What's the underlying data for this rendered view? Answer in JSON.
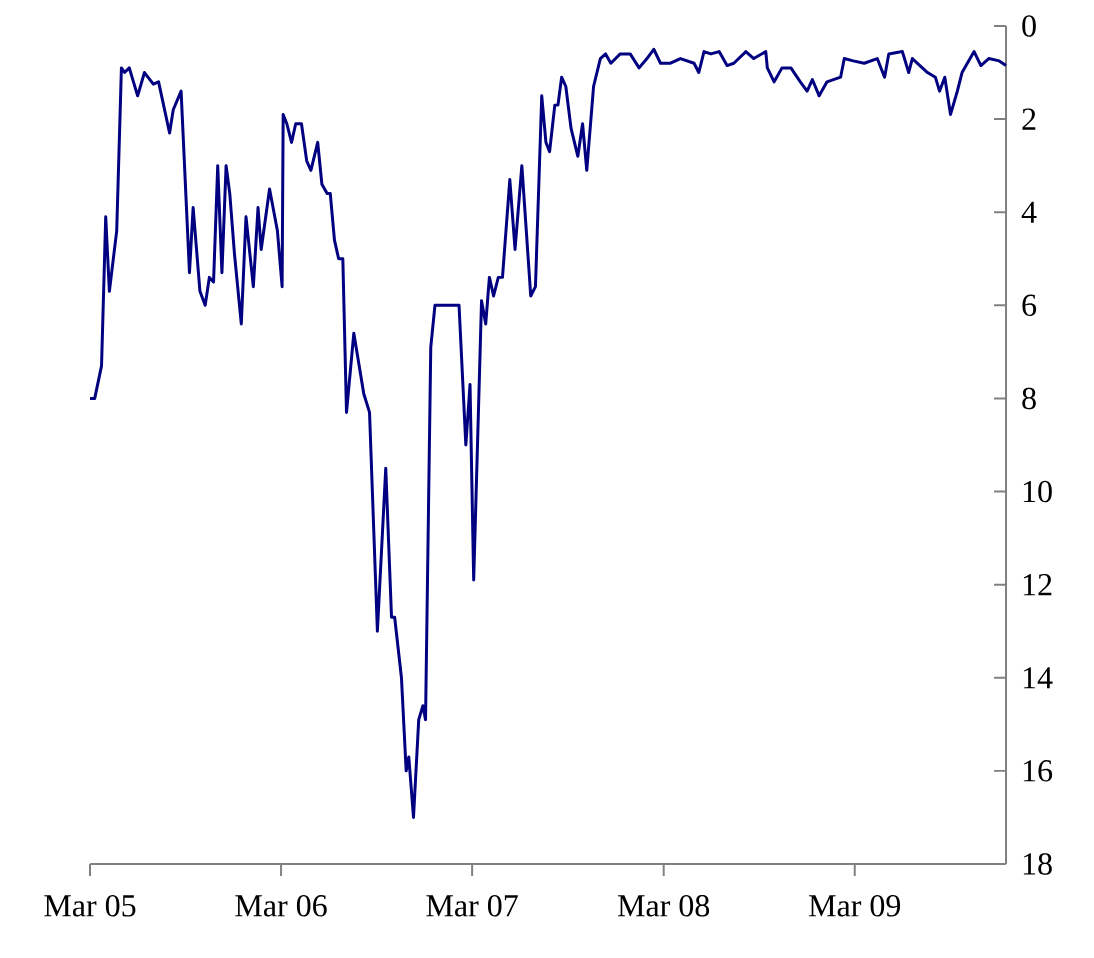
{
  "chart_data": {
    "type": "line",
    "color": "#000080",
    "x": [
      "2005-03-01",
      "2005-03-10",
      "2005-03-23",
      "2005-03-31",
      "2005-04-07",
      "2005-04-21",
      "2005-04-30",
      "2005-05-06",
      "2005-05-15",
      "2005-05-31",
      "2005-06-13",
      "2005-06-30",
      "2005-07-10",
      "2005-07-31",
      "2005-08-07",
      "2005-08-22",
      "2005-09-07",
      "2005-09-14",
      "2005-09-27",
      "2005-10-07",
      "2005-10-15",
      "2005-10-23",
      "2005-10-31",
      "2005-11-08",
      "2005-11-16",
      "2005-11-23",
      "2005-12-02",
      "2005-12-15",
      "2005-12-24",
      "2006-01-07",
      "2006-01-16",
      "2006-01-22",
      "2006-02-07",
      "2006-02-22",
      "2006-03-03",
      "2006-03-05",
      "2006-03-12",
      "2006-03-21",
      "2006-03-29",
      "2006-04-09",
      "2006-04-19",
      "2006-04-27",
      "2006-05-10",
      "2006-05-18",
      "2006-05-28",
      "2006-06-03",
      "2006-06-11",
      "2006-06-19",
      "2006-06-27",
      "2006-07-04",
      "2006-07-18",
      "2006-08-06",
      "2006-08-17",
      "2006-09-01",
      "2006-09-17",
      "2006-09-28",
      "2006-10-04",
      "2006-10-17",
      "2006-10-26",
      "2006-10-31",
      "2006-11-09",
      "2006-11-19",
      "2006-11-27",
      "2006-12-02",
      "2006-12-12",
      "2006-12-20",
      "2007-02-04",
      "2007-02-17",
      "2007-02-25",
      "2007-03-04",
      "2007-03-19",
      "2007-03-27",
      "2007-04-03",
      "2007-04-11",
      "2007-04-20",
      "2007-04-28",
      "2007-05-12",
      "2007-05-22",
      "2007-06-04",
      "2007-06-21",
      "2007-06-30",
      "2007-07-12",
      "2007-07-20",
      "2007-07-27",
      "2007-08-06",
      "2007-08-12",
      "2007-08-19",
      "2007-08-27",
      "2007-09-06",
      "2007-09-19",
      "2007-09-28",
      "2007-10-06",
      "2007-10-19",
      "2007-11-01",
      "2007-11-11",
      "2007-11-21",
      "2007-12-09",
      "2007-12-28",
      "2008-01-14",
      "2008-01-29",
      "2008-02-11",
      "2008-02-24",
      "2008-03-14",
      "2008-04-02",
      "2008-04-28",
      "2008-05-07",
      "2008-05-17",
      "2008-05-30",
      "2008-06-15",
      "2008-06-30",
      "2008-07-13",
      "2008-08-05",
      "2008-08-20",
      "2008-09-12",
      "2008-09-15",
      "2008-09-28",
      "2008-10-13",
      "2008-10-30",
      "2008-11-17",
      "2008-11-30",
      "2008-12-10",
      "2008-12-23",
      "2009-01-07",
      "2009-02-02",
      "2009-02-09",
      "2009-02-26",
      "2009-03-19",
      "2009-04-13",
      "2009-04-27",
      "2009-05-05",
      "2009-05-31",
      "2009-06-12",
      "2009-06-19",
      "2009-07-18",
      "2009-08-02",
      "2009-08-10",
      "2009-08-20",
      "2009-08-31",
      "2009-09-13",
      "2009-09-22",
      "2009-10-15",
      "2009-10-28",
      "2009-11-12",
      "2009-12-02",
      "2009-12-15"
    ],
    "values": [
      8.0,
      8.0,
      7.3,
      4.1,
      5.7,
      4.4,
      0.9,
      1.0,
      0.9,
      1.5,
      1.0,
      1.25,
      1.2,
      2.3,
      1.8,
      1.4,
      5.3,
      3.9,
      5.7,
      6.0,
      5.4,
      5.5,
      3.0,
      5.3,
      3.0,
      3.6,
      4.9,
      6.4,
      4.1,
      5.6,
      3.9,
      4.8,
      3.5,
      4.4,
      5.6,
      1.9,
      2.1,
      2.5,
      2.1,
      2.1,
      2.9,
      3.1,
      2.5,
      3.4,
      3.6,
      3.6,
      4.6,
      5.0,
      5.0,
      8.3,
      6.6,
      7.9,
      8.3,
      13.0,
      9.5,
      12.7,
      12.7,
      14.0,
      16.0,
      15.7,
      17.0,
      14.9,
      14.6,
      14.9,
      6.9,
      6.0,
      6.0,
      9.0,
      7.7,
      11.9,
      5.9,
      6.4,
      5.4,
      5.8,
      5.4,
      5.4,
      3.3,
      4.8,
      3.0,
      5.8,
      5.6,
      1.5,
      2.5,
      2.7,
      1.7,
      1.7,
      1.1,
      1.3,
      2.2,
      2.8,
      2.1,
      3.1,
      1.3,
      0.7,
      0.6,
      0.8,
      0.6,
      0.6,
      0.9,
      0.7,
      0.5,
      0.8,
      0.8,
      0.7,
      0.8,
      1.0,
      0.55,
      0.6,
      0.55,
      0.85,
      0.8,
      0.55,
      0.7,
      0.55,
      0.9,
      1.2,
      0.9,
      0.9,
      1.2,
      1.4,
      1.15,
      1.5,
      1.2,
      1.1,
      0.7,
      0.75,
      0.8,
      0.7,
      1.1,
      0.6,
      0.55,
      1.0,
      0.7,
      1.0,
      1.1,
      1.4,
      1.1,
      1.9,
      1.4,
      1.0,
      0.55,
      0.85,
      0.7,
      0.75,
      0.85
    ],
    "xlim": [
      "2005-03-01",
      "2009-12-15"
    ],
    "xticks": [
      {
        "value": "2005-03-01",
        "label": "Mar 05"
      },
      {
        "value": "2006-03-01",
        "label": "Mar 06"
      },
      {
        "value": "2007-03-01",
        "label": "Mar 07"
      },
      {
        "value": "2008-03-01",
        "label": "Mar 08"
      },
      {
        "value": "2009-03-01",
        "label": "Mar 09"
      }
    ],
    "ylim": [
      18,
      0
    ],
    "yticks": [
      0,
      2,
      4,
      6,
      8,
      10,
      12,
      14,
      16,
      18
    ]
  }
}
